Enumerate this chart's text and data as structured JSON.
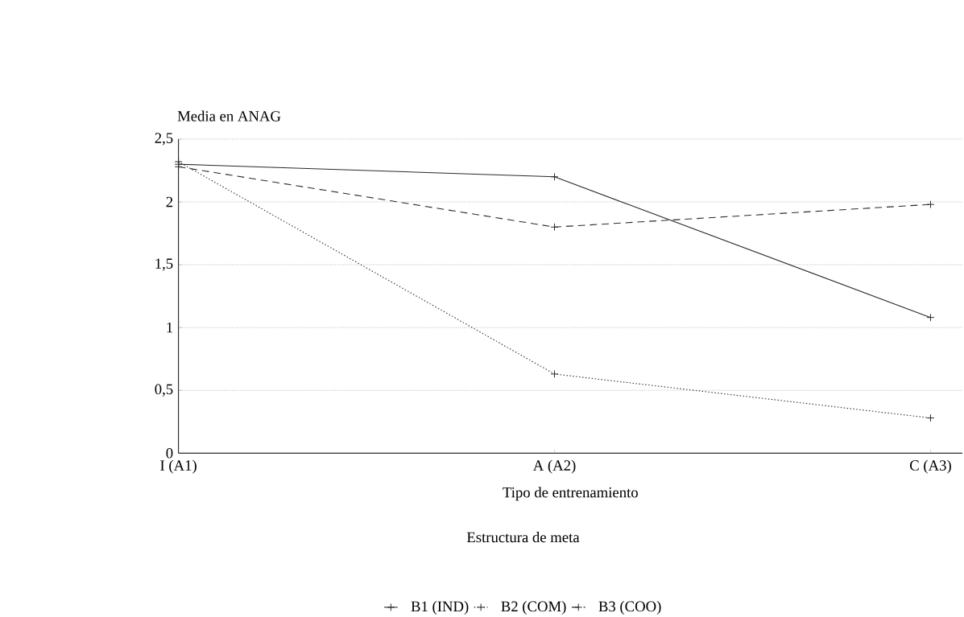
{
  "chart_data": {
    "type": "line",
    "ylabel": "Media en ANAG",
    "xlabel": "Tipo de entrenamiento",
    "legend_title": "Estructura de meta",
    "categories": [
      "I (A1)",
      "A (A2)",
      "C (A3)"
    ],
    "series": [
      {
        "name": "B1 (IND)",
        "color": "#2a2a2a",
        "line_style": "solid",
        "values": [
          2.3,
          2.2,
          1.08
        ]
      },
      {
        "name": "B2 (COM)",
        "color": "#2a2a2a",
        "line_style": "dotted",
        "values": [
          2.32,
          0.63,
          0.28
        ]
      },
      {
        "name": "B3 (COO)",
        "color": "#2a2a2a",
        "line_style": "dashed",
        "values": [
          2.28,
          1.8,
          1.98
        ]
      }
    ],
    "ylim": [
      0,
      2.5
    ],
    "yticks": [
      0,
      {
        "value": 0.5,
        "label": "0,5"
      },
      1,
      {
        "value": 1.5,
        "label": "1,5"
      },
      2,
      {
        "value": 2.5,
        "label": "2,5"
      }
    ],
    "grid": "y",
    "legend": "bottom",
    "marker": "cross"
  }
}
